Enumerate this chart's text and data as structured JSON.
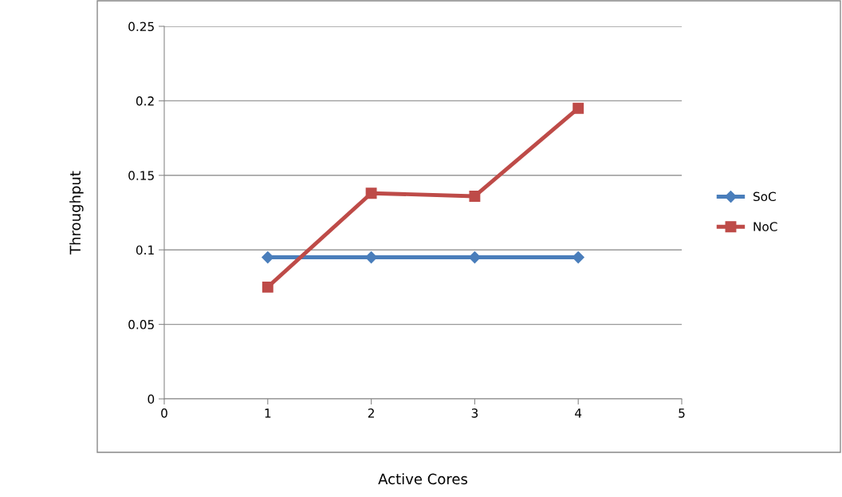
{
  "chart_data": {
    "type": "line",
    "xlabel": "Active Cores",
    "ylabel": "Throughput",
    "x": [
      1,
      2,
      3,
      4
    ],
    "series": [
      {
        "name": "SoC",
        "color": "#4a7ebb",
        "values": [
          0.095,
          0.095,
          0.095,
          0.095
        ],
        "marker": "diamond"
      },
      {
        "name": "NoC",
        "color": "#be4b48",
        "values": [
          0.075,
          0.138,
          0.136,
          0.195
        ],
        "marker": "square"
      }
    ],
    "xlim": [
      0,
      5
    ],
    "xticks": [
      0,
      1,
      2,
      3,
      4,
      5
    ],
    "ylim": [
      0,
      0.25
    ],
    "yticks": [
      0,
      0.05,
      0.1,
      0.15,
      0.2,
      0.25
    ],
    "grid": "y",
    "legend": "right",
    "line_style": "solid"
  }
}
